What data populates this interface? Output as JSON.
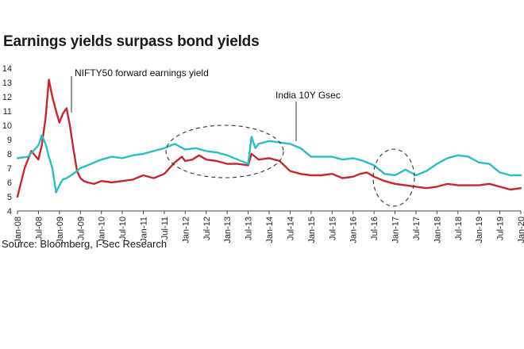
{
  "title": "Earnings yields surpass bond yields",
  "source": "Source: Bloomberg, I-Sec Research",
  "chart_data": {
    "type": "line",
    "title": "Earnings yields surpass bond yields",
    "xlabel": "",
    "ylabel": "",
    "ylim": [
      4,
      14
    ],
    "yticks": [
      4,
      5,
      6,
      7,
      8,
      9,
      10,
      11,
      12,
      13,
      14
    ],
    "xlim": [
      2008.0,
      2020.0
    ],
    "xtick_labels": [
      "Jan-08",
      "Jul-08",
      "Jan-09",
      "Jul-09",
      "Jan-10",
      "Jul-10",
      "Jan-11",
      "Jul-11",
      "Jan-12",
      "Jul-12",
      "Jan-13",
      "Jul-13",
      "Jan-14",
      "Jul-14",
      "Jan-15",
      "Jul-15",
      "Jan-16",
      "Jul-16",
      "Jan-17",
      "Jul-17",
      "Jan-18",
      "Jul-18",
      "Jan-19",
      "Jul-19",
      "Jan-20"
    ],
    "annotations": [
      "NIFTY50 forward earnings yield",
      "India 10Y Gsec"
    ],
    "series": [
      {
        "name": "NIFTY50 forward earnings yield",
        "color": "#c8262e",
        "x": [
          2008.0,
          2008.17,
          2008.33,
          2008.5,
          2008.58,
          2008.67,
          2008.75,
          2008.83,
          2008.92,
          2009.0,
          2009.08,
          2009.17,
          2009.25,
          2009.33,
          2009.42,
          2009.5,
          2009.58,
          2009.67,
          2009.83,
          2010.0,
          2010.25,
          2010.5,
          2010.75,
          2011.0,
          2011.25,
          2011.5,
          2011.75,
          2011.92,
          2012.0,
          2012.17,
          2012.33,
          2012.5,
          2012.75,
          2013.0,
          2013.25,
          2013.5,
          2013.58,
          2013.75,
          2014.0,
          2014.25,
          2014.5,
          2014.75,
          2015.0,
          2015.25,
          2015.5,
          2015.75,
          2016.0,
          2016.17,
          2016.33,
          2016.5,
          2016.75,
          2017.0,
          2017.25,
          2017.5,
          2017.75,
          2018.0,
          2018.25,
          2018.5,
          2018.75,
          2019.0,
          2019.25,
          2019.5,
          2019.75,
          2020.0
        ],
        "values": [
          5.0,
          7.0,
          8.2,
          7.6,
          8.6,
          10.5,
          13.2,
          12.0,
          11.0,
          10.2,
          10.8,
          11.2,
          10.0,
          8.4,
          6.8,
          6.3,
          6.1,
          6.0,
          5.9,
          6.1,
          6.0,
          6.1,
          6.2,
          6.5,
          6.3,
          6.6,
          7.4,
          7.8,
          7.5,
          7.6,
          7.9,
          7.6,
          7.5,
          7.3,
          7.3,
          7.2,
          8.0,
          7.6,
          7.7,
          7.5,
          6.8,
          6.6,
          6.5,
          6.5,
          6.6,
          6.3,
          6.4,
          6.6,
          6.7,
          6.4,
          6.1,
          5.9,
          5.8,
          5.7,
          5.6,
          5.7,
          5.9,
          5.8,
          5.8,
          5.8,
          5.9,
          5.7,
          5.5,
          5.6
        ]
      },
      {
        "name": "India 10Y Gsec",
        "color": "#2bbec3",
        "x": [
          2008.0,
          2008.25,
          2008.5,
          2008.58,
          2008.67,
          2008.75,
          2008.83,
          2008.92,
          2009.0,
          2009.08,
          2009.17,
          2009.33,
          2009.5,
          2009.75,
          2010.0,
          2010.25,
          2010.5,
          2010.75,
          2011.0,
          2011.25,
          2011.5,
          2011.75,
          2012.0,
          2012.25,
          2012.5,
          2012.75,
          2013.0,
          2013.25,
          2013.42,
          2013.5,
          2013.58,
          2013.67,
          2013.75,
          2014.0,
          2014.25,
          2014.5,
          2014.75,
          2015.0,
          2015.25,
          2015.5,
          2015.75,
          2016.0,
          2016.25,
          2016.5,
          2016.75,
          2017.0,
          2017.25,
          2017.5,
          2017.75,
          2018.0,
          2018.25,
          2018.5,
          2018.75,
          2019.0,
          2019.25,
          2019.5,
          2019.75,
          2020.0
        ],
        "values": [
          7.7,
          7.8,
          8.6,
          9.3,
          8.7,
          7.8,
          7.0,
          5.3,
          5.8,
          6.2,
          6.3,
          6.6,
          7.0,
          7.3,
          7.6,
          7.8,
          7.7,
          7.9,
          8.0,
          8.2,
          8.4,
          8.7,
          8.3,
          8.4,
          8.2,
          8.1,
          7.9,
          7.6,
          7.4,
          7.3,
          9.2,
          8.4,
          8.7,
          8.9,
          8.8,
          8.7,
          8.4,
          7.8,
          7.8,
          7.8,
          7.6,
          7.7,
          7.5,
          7.2,
          6.6,
          6.5,
          6.9,
          6.5,
          6.8,
          7.3,
          7.7,
          7.9,
          7.8,
          7.4,
          7.3,
          6.7,
          6.5,
          6.5
        ]
      }
    ]
  }
}
